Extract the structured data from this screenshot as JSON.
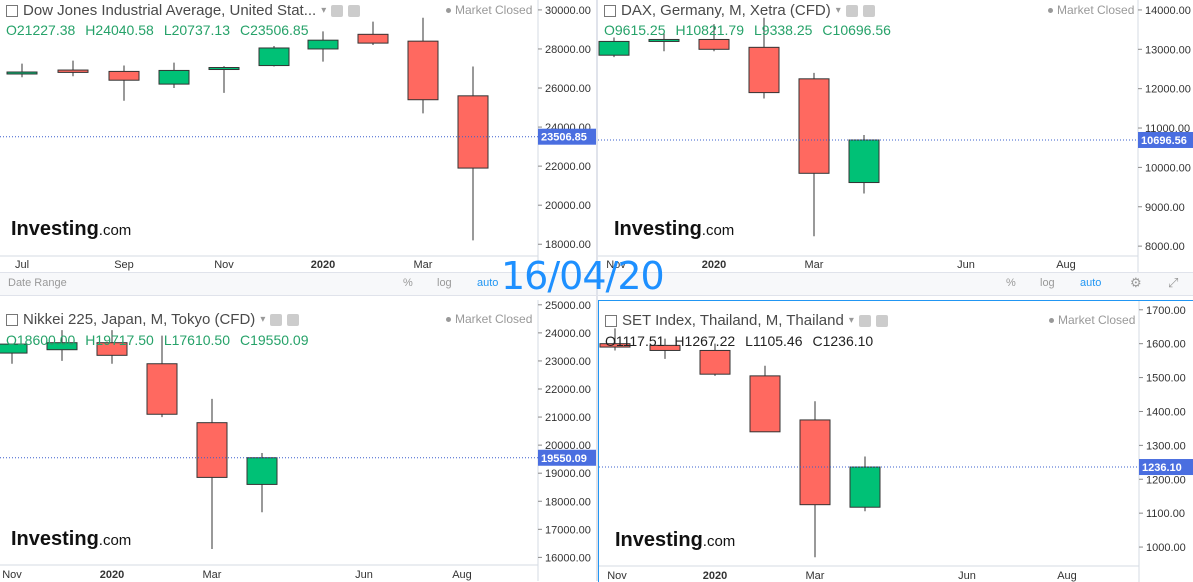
{
  "overlay_date": "16/04/20",
  "toolbar": {
    "date_range": "Date Range",
    "percent": "%",
    "log": "log",
    "auto": "auto"
  },
  "panels": [
    {
      "title": "Dow Jones Industrial Average, United Stat...",
      "market_status": "Market Closed",
      "ohlc": {
        "o": "O21227.38",
        "h": "H24040.58",
        "l": "L20737.13",
        "c": "C23506.85"
      },
      "last_price": "23506.85",
      "watermark": "Investing",
      "watermark_suffix": ".com",
      "y_ticks": [
        "18000.00",
        "20000.00",
        "22000.00",
        "24000.00",
        "26000.00",
        "28000.00",
        "30000.00"
      ],
      "x_ticks": [
        "Jul",
        "Sep",
        "Nov",
        "2020",
        "Mar"
      ]
    },
    {
      "title": "DAX, Germany, M, Xetra (CFD)",
      "market_status": "Market Closed",
      "ohlc": {
        "o": "O9615.25",
        "h": "H10821.79",
        "l": "L9338.25",
        "c": "C10696.56"
      },
      "last_price": "10696.56",
      "watermark": "Investing",
      "watermark_suffix": ".com",
      "y_ticks": [
        "8000.00",
        "9000.00",
        "10000.00",
        "11000.00",
        "12000.00",
        "13000.00",
        "14000.00"
      ],
      "x_ticks": [
        "Nov",
        "2020",
        "Mar",
        "Jun",
        "Aug"
      ]
    },
    {
      "title": "Nikkei 225, Japan, M, Tokyo (CFD)",
      "market_status": "Market Closed",
      "ohlc": {
        "o": "O18600.00",
        "h": "H19717.50",
        "l": "L17610.50",
        "c": "C19550.09"
      },
      "last_price": "19550.09",
      "watermark": "Investing",
      "watermark_suffix": ".com",
      "y_ticks": [
        "16000.00",
        "17000.00",
        "18000.00",
        "19000.00",
        "20000.00",
        "21000.00",
        "22000.00",
        "23000.00",
        "24000.00",
        "25000.00"
      ],
      "x_ticks": [
        "Nov",
        "2020",
        "Mar",
        "Jun",
        "Aug"
      ]
    },
    {
      "title": "SET Index, Thailand, M, Thailand",
      "market_status": "Market Closed",
      "ohlc": {
        "o": "O1117.51",
        "h": "H1267.22",
        "l": "L1105.46",
        "c": "C1236.10"
      },
      "last_price": "1236.10",
      "watermark": "Investing",
      "watermark_suffix": ".com",
      "y_ticks": [
        "1000.00",
        "1100.00",
        "1200.00",
        "1300.00",
        "1400.00",
        "1500.00",
        "1600.00",
        "1700.00"
      ],
      "x_ticks": [
        "Nov",
        "2020",
        "Mar",
        "Jun",
        "Aug"
      ]
    }
  ],
  "colors": {
    "up": "#00c176",
    "down": "#ff6960",
    "price_line": "#3a5fcd",
    "price_label": "#4a6ee0",
    "axis_text": "#333333"
  },
  "chart_data": [
    {
      "type": "candlestick",
      "title": "Dow Jones Industrial Average, United Stat...",
      "ylim": [
        17500,
        30200
      ],
      "x": [
        "2019-06",
        "2019-07",
        "2019-08",
        "2019-09",
        "2019-10",
        "2019-11",
        "2019-12",
        "2020-01",
        "2020-02",
        "2020-03",
        "2020-04"
      ],
      "x_ticks": [
        "Jul",
        "Sep",
        "Nov",
        "2020",
        "Mar"
      ],
      "candles": [
        {
          "t": "2019-06",
          "o": 26750,
          "h": 27250,
          "l": 26550,
          "c": 26820
        },
        {
          "t": "2019-07",
          "o": 26920,
          "h": 27400,
          "l": 26600,
          "c": 26800
        },
        {
          "t": "2019-08",
          "o": 26850,
          "h": 27150,
          "l": 25350,
          "c": 26400
        },
        {
          "t": "2019-09",
          "o": 26200,
          "h": 27300,
          "l": 26000,
          "c": 26900
        },
        {
          "t": "2019-10",
          "o": 26950,
          "h": 27120,
          "l": 25750,
          "c": 27050
        },
        {
          "t": "2019-11",
          "o": 27150,
          "h": 28150,
          "l": 27100,
          "c": 28050
        },
        {
          "t": "2019-12",
          "o": 28000,
          "h": 28900,
          "l": 27350,
          "c": 28450
        },
        {
          "t": "2020-01",
          "o": 28750,
          "h": 29400,
          "l": 28200,
          "c": 28300
        },
        {
          "t": "2020-02",
          "o": 28400,
          "h": 29600,
          "l": 24700,
          "c": 25400
        },
        {
          "t": "2020-03",
          "o": 25600,
          "h": 27100,
          "l": 18200,
          "c": 21900
        },
        {
          "t": "2020-04",
          "o": 21227.38,
          "h": 24040.58,
          "l": 20737.13,
          "c": 23506.85
        }
      ],
      "last": 23506.85
    },
    {
      "type": "candlestick",
      "title": "DAX, Germany, M, Xetra (CFD)",
      "ylim": [
        7800,
        14100
      ],
      "x_ticks": [
        "Nov",
        "2020",
        "Mar",
        "Jun",
        "Aug"
      ],
      "candles": [
        {
          "t": "2019-11",
          "o": 12850,
          "h": 13300,
          "l": 12800,
          "c": 13200
        },
        {
          "t": "2019-12",
          "o": 13240,
          "h": 13400,
          "l": 12950,
          "c": 13250
        },
        {
          "t": "2020-01",
          "o": 13250,
          "h": 13640,
          "l": 12950,
          "c": 13000
        },
        {
          "t": "2020-02",
          "o": 13050,
          "h": 13800,
          "l": 11750,
          "c": 11900
        },
        {
          "t": "2020-03",
          "o": 12250,
          "h": 12400,
          "l": 8250,
          "c": 9850
        },
        {
          "t": "2020-04",
          "o": 9615.25,
          "h": 10821.79,
          "l": 9338.25,
          "c": 10696.56
        }
      ],
      "last": 10696.56
    },
    {
      "type": "candlestick",
      "title": "Nikkei 225, Japan, M, Tokyo (CFD)",
      "ylim": [
        15800,
        25100
      ],
      "x_ticks": [
        "Nov",
        "2020",
        "Mar",
        "Jun",
        "Aug"
      ],
      "candles": [
        {
          "t": "2019-11",
          "o": 23280,
          "h": 23600,
          "l": 22900,
          "c": 23600
        },
        {
          "t": "2019-12",
          "o": 23400,
          "h": 24100,
          "l": 23000,
          "c": 23650
        },
        {
          "t": "2020-01",
          "o": 23650,
          "h": 24100,
          "l": 22900,
          "c": 23200
        },
        {
          "t": "2020-02",
          "o": 22900,
          "h": 23900,
          "l": 21000,
          "c": 21100
        },
        {
          "t": "2020-03",
          "o": 20800,
          "h": 21650,
          "l": 16300,
          "c": 18850
        },
        {
          "t": "2020-04",
          "o": 18600.0,
          "h": 19717.5,
          "l": 17610.5,
          "c": 19550.09
        }
      ],
      "last": 19550.09
    },
    {
      "type": "candlestick",
      "title": "SET Index, Thailand, M, Thailand",
      "ylim": [
        950,
        1720
      ],
      "x_ticks": [
        "Nov",
        "2020",
        "Mar",
        "Jun",
        "Aug"
      ],
      "candles": [
        {
          "t": "2019-11",
          "o": 1600,
          "h": 1645,
          "l": 1580,
          "c": 1590
        },
        {
          "t": "2019-12",
          "o": 1595,
          "h": 1615,
          "l": 1555,
          "c": 1580
        },
        {
          "t": "2020-01",
          "o": 1580,
          "h": 1600,
          "l": 1505,
          "c": 1510
        },
        {
          "t": "2020-02",
          "o": 1505,
          "h": 1535,
          "l": 1340,
          "c": 1340
        },
        {
          "t": "2020-03",
          "o": 1375,
          "h": 1430,
          "l": 970,
          "c": 1125
        },
        {
          "t": "2020-04",
          "o": 1117.51,
          "h": 1267.22,
          "l": 1105.46,
          "c": 1236.1
        }
      ],
      "last": 1236.1
    }
  ]
}
